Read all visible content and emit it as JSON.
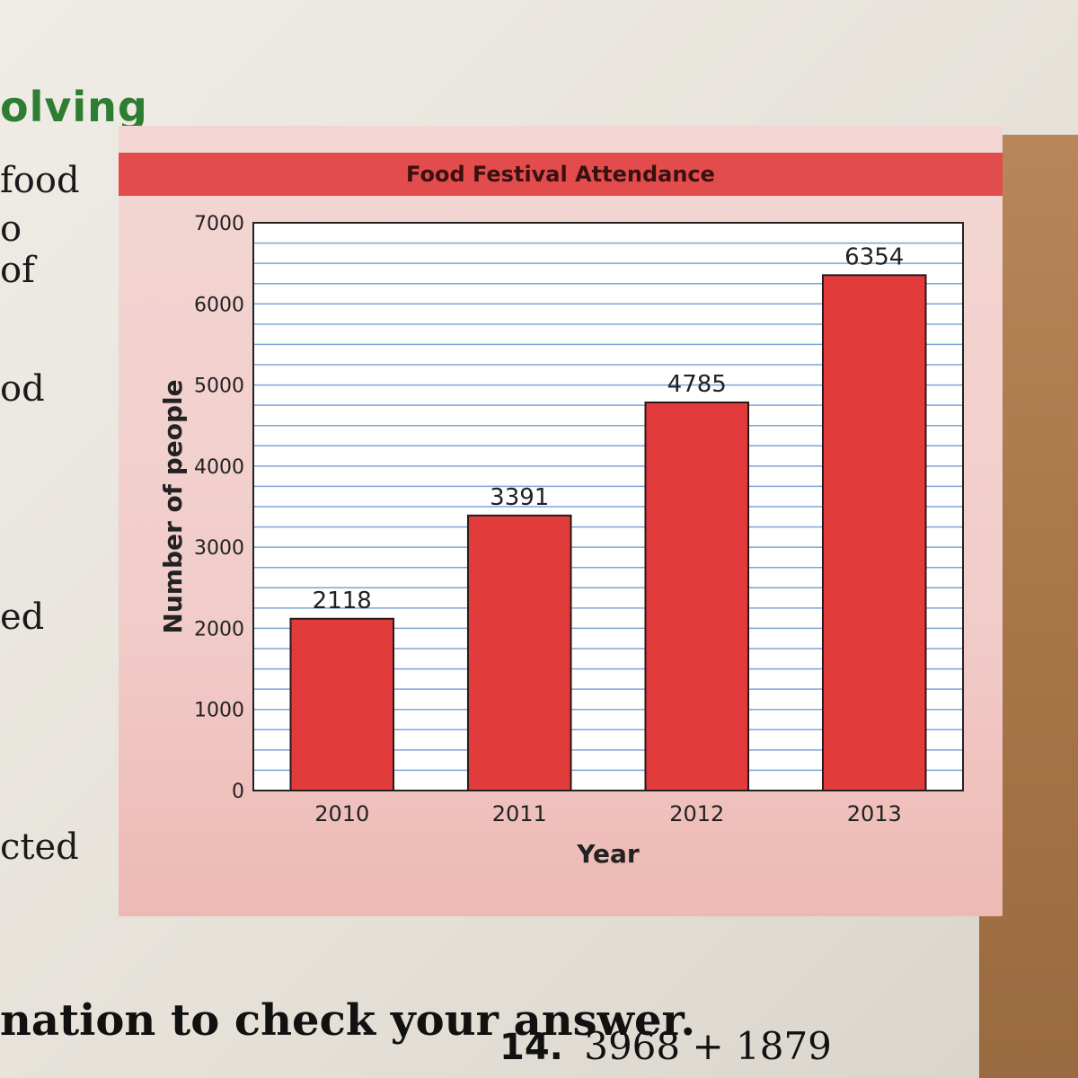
{
  "page": {
    "section_heading": "olving",
    "margin_words": [
      "food",
      "o",
      "of",
      "od",
      "ed",
      "cted"
    ],
    "footer_text": "nation to check your answer.",
    "exercise": {
      "number": "14.",
      "expression": "3968 + 1879"
    }
  },
  "colors": {
    "bar": "#e23b3b",
    "band": "#e34c4c",
    "grid": "#5b8fd0",
    "heading": "#2e7d32"
  },
  "chart_data": {
    "type": "bar",
    "title": "Food Festival Attendance",
    "xlabel": "Year",
    "ylabel": "Number of people",
    "categories": [
      "2010",
      "2011",
      "2012",
      "2013"
    ],
    "values": [
      2118,
      3391,
      4785,
      6354
    ],
    "data_labels": [
      "2118",
      "3391",
      "4785",
      "6354"
    ],
    "ylim": [
      0,
      7000
    ],
    "yticks": [
      0,
      1000,
      2000,
      3000,
      4000,
      5000,
      6000,
      7000
    ],
    "ytick_labels": [
      "0",
      "1000",
      "2000",
      "3000",
      "4000",
      "5000",
      "6000",
      "7000"
    ],
    "minor_grid_step": 250,
    "grid": true,
    "legend": "none"
  }
}
